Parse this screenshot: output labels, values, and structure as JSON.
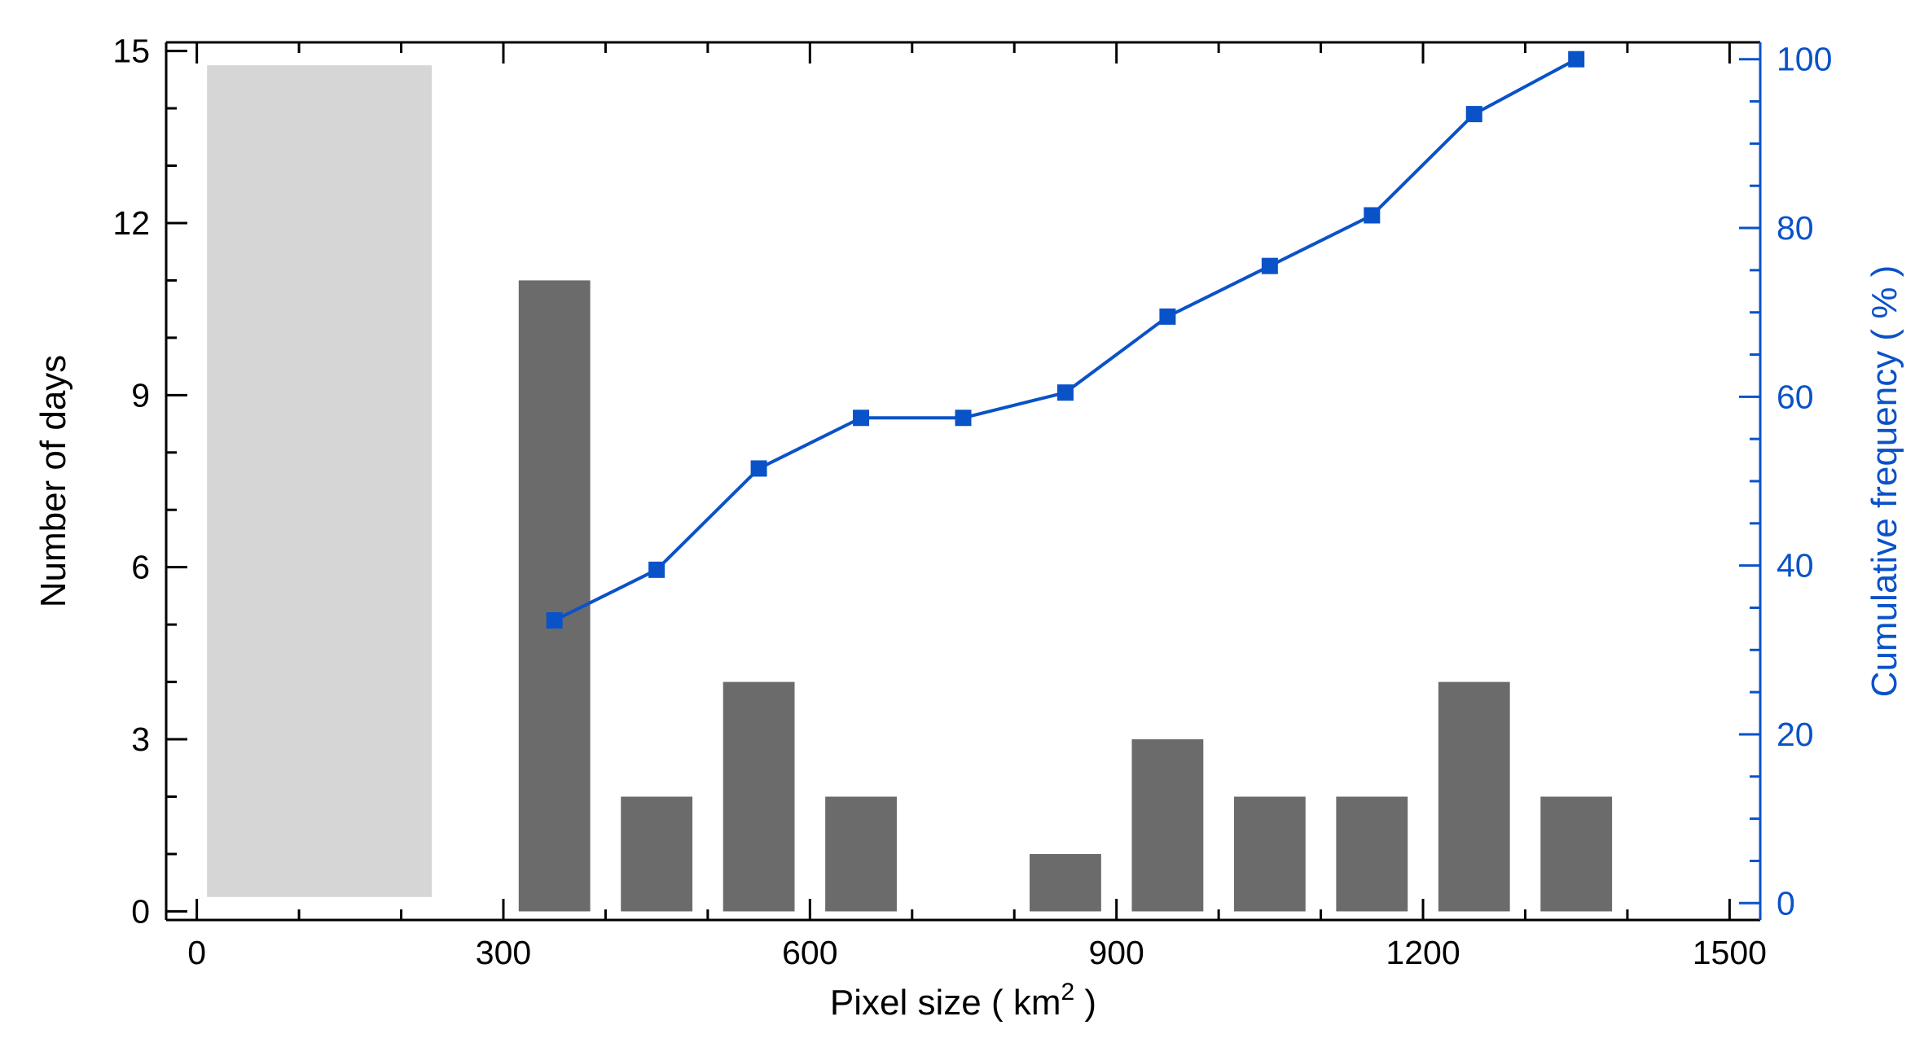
{
  "chart_data": {
    "type": "bar",
    "xlabel": "Pixel size ( km",
    "xlabel_superscript": "2",
    "xlabel_suffix": " )",
    "ylabel_left": "Number of days",
    "ylabel_right": "Cumulative frequency ( % )",
    "xlim": [
      -30,
      1530
    ],
    "ylim_left": [
      -0.15,
      15.15
    ],
    "ylim_right": [
      -2,
      102
    ],
    "x_ticks": [
      0,
      300,
      600,
      900,
      1200,
      1500
    ],
    "y_ticks_left": [
      0,
      3,
      6,
      9,
      12,
      15
    ],
    "y_ticks_right": [
      0,
      20,
      40,
      60,
      80,
      100
    ],
    "shaded_region": {
      "x_start": 10,
      "x_end": 230,
      "y_bottom": 0.25,
      "y_top": 14.75
    },
    "bar_width": 70,
    "bars": {
      "name": "Number of days",
      "x": [
        350,
        450,
        550,
        650,
        850,
        950,
        1050,
        1150,
        1250,
        1350
      ],
      "values": [
        11,
        2,
        4,
        2,
        1,
        3,
        2,
        2,
        4,
        2
      ]
    },
    "line": {
      "name": "Cumulative frequency",
      "axis": "right",
      "x": [
        350,
        450,
        550,
        650,
        750,
        850,
        950,
        1050,
        1150,
        1250,
        1350
      ],
      "values": [
        33.5,
        39.5,
        51.5,
        57.5,
        57.5,
        60.5,
        69.5,
        75.5,
        81.5,
        93.5,
        100
      ]
    },
    "colors": {
      "bars": "#6b6b6b",
      "shaded_region": "#d6d6d6",
      "line": "#0a52c8",
      "axis_left": "#000000",
      "axis_right": "#0a52c8"
    },
    "grid": false
  }
}
